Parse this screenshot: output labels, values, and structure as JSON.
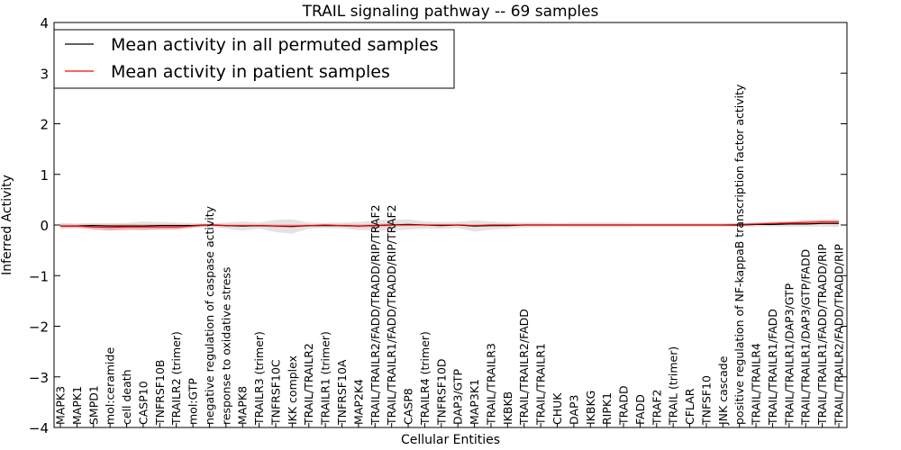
{
  "chart_data": {
    "type": "line",
    "title": "TRAIL signaling pathway -- 69 samples",
    "xlabel": "Cellular Entities",
    "ylabel": "Inferred Activity",
    "ylim": [
      -4,
      4
    ],
    "yticks": [
      -4,
      -3,
      -2,
      -1,
      0,
      1,
      2,
      3,
      4
    ],
    "ytick_labels": [
      "−4",
      "−3",
      "−2",
      "−1",
      "0",
      "1",
      "2",
      "3",
      "4"
    ],
    "legend_position": "top-left",
    "categories": [
      "MAPK3",
      "MAPK1",
      "SMPD1",
      "mol:ceramide",
      "cell death",
      "CASP10",
      "TNFRSF10B",
      "TRAILR2 (trimer)",
      "mol:GTP",
      "negative regulation of caspase activity",
      "response to oxidative stress",
      "MAPK8",
      "TRAILR3 (trimer)",
      "TNFRSF10C",
      "IKK complex",
      "TRAIL/TRAILR2",
      "TRAILR1 (trimer)",
      "TNFRSF10A",
      "MAP2K4",
      "TRAIL/TRAILR2/FADD/TRADD/RIP/TRAF2",
      "TRAIL/TRAILR1/FADD/TRADD/RIP/TRAF2",
      "CASP8",
      "TRAILR4 (trimer)",
      "TNFRSF10D",
      "DAP3/GTP",
      "MAP3K1",
      "TRAIL/TRAILR3",
      "IKBKB",
      "TRAIL/TRAILR2/FADD",
      "TRAIL/TRAILR1",
      "CHUK",
      "DAP3",
      "IKBKG",
      "RIPK1",
      "TRADD",
      "FADD",
      "TRAF2",
      "TRAIL (trimer)",
      "CFLAR",
      "TNFSF10",
      "JNK cascade",
      "positive regulation of NF-kappaB transcription factor activity",
      "TRAIL/TRAILR4",
      "TRAIL/TRAILR1/FADD",
      "TRAIL/TRAILR1/DAP3/GTP",
      "TRAIL/TRAILR1/DAP3/GTP/FADD",
      "TRAIL/TRAILR1/FADD/TRADD/RIP",
      "TRAIL/TRAILR2/FADD/TRADD/RIP"
    ],
    "series": [
      {
        "name": "Mean activity in all permuted samples",
        "color": "#000000",
        "band_color": "#c8c8c8",
        "values": [
          -0.02,
          -0.02,
          -0.01,
          -0.02,
          -0.02,
          -0.02,
          -0.01,
          -0.01,
          -0.01,
          0.0,
          -0.01,
          -0.02,
          -0.01,
          -0.02,
          -0.03,
          -0.01,
          -0.01,
          -0.01,
          -0.02,
          -0.01,
          0.0,
          0.01,
          0.0,
          -0.01,
          0.0,
          -0.02,
          -0.01,
          -0.01,
          0.0,
          0.0,
          0.0,
          0.0,
          0.0,
          0.0,
          0.0,
          0.0,
          0.0,
          0.0,
          0.0,
          0.0,
          0.0,
          0.0,
          0.01,
          0.01,
          0.02,
          0.02,
          0.03,
          0.03
        ],
        "band": [
          0.06,
          0.05,
          0.05,
          0.06,
          0.06,
          0.09,
          0.07,
          0.06,
          0.05,
          0.03,
          0.06,
          0.09,
          0.06,
          0.12,
          0.14,
          0.06,
          0.05,
          0.06,
          0.08,
          0.1,
          0.11,
          0.1,
          0.07,
          0.07,
          0.06,
          0.11,
          0.08,
          0.06,
          0.05,
          0.05,
          0.04,
          0.05,
          0.05,
          0.05,
          0.05,
          0.04,
          0.04,
          0.04,
          0.04,
          0.04,
          0.04,
          0.04,
          0.04,
          0.04,
          0.05,
          0.05,
          0.06,
          0.07
        ]
      },
      {
        "name": "Mean activity in patient samples",
        "color": "#ff0000",
        "band_color": "#f0a0a0",
        "values": [
          -0.02,
          -0.02,
          -0.04,
          -0.05,
          -0.04,
          -0.04,
          -0.04,
          -0.04,
          -0.02,
          0.0,
          -0.01,
          -0.01,
          -0.01,
          -0.02,
          -0.02,
          -0.01,
          0.0,
          -0.01,
          -0.02,
          -0.01,
          0.0,
          0.0,
          0.0,
          0.0,
          0.0,
          -0.01,
          0.0,
          0.0,
          0.0,
          0.0,
          0.0,
          0.0,
          0.0,
          0.0,
          0.0,
          0.0,
          0.0,
          0.0,
          0.0,
          0.0,
          0.0,
          0.01,
          0.02,
          0.03,
          0.04,
          0.05,
          0.06,
          0.06
        ],
        "band": [
          0.03,
          0.03,
          0.05,
          0.06,
          0.06,
          0.05,
          0.05,
          0.05,
          0.03,
          0.02,
          0.02,
          0.02,
          0.02,
          0.03,
          0.03,
          0.02,
          0.02,
          0.02,
          0.03,
          0.03,
          0.03,
          0.02,
          0.02,
          0.02,
          0.02,
          0.02,
          0.02,
          0.02,
          0.02,
          0.02,
          0.02,
          0.02,
          0.02,
          0.02,
          0.02,
          0.02,
          0.02,
          0.02,
          0.02,
          0.02,
          0.02,
          0.02,
          0.02,
          0.03,
          0.03,
          0.04,
          0.04,
          0.04
        ]
      }
    ]
  }
}
